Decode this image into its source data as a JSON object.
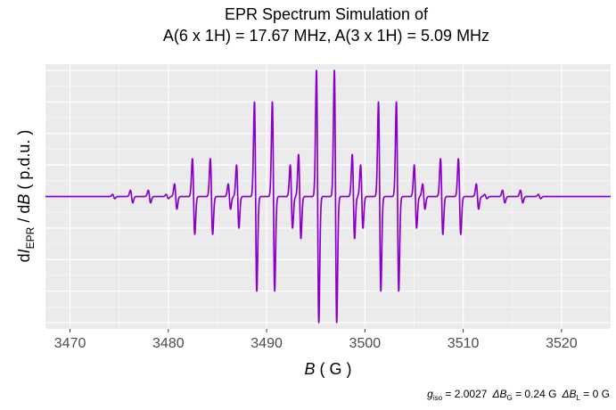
{
  "chart_data": {
    "type": "line",
    "title_line1": "EPR Spectrum Simulation of",
    "title_line2": "A(6 x 1H) = 17.67 MHz, A(3 x 1H) = 5.09 MHz",
    "xlabel_italic": "B",
    "xlabel_unit": " ( G )",
    "ylabel_d": "d",
    "ylabel_I": "I",
    "ylabel_sub": "EPR",
    "ylabel_mid": " / d",
    "ylabel_B": "B",
    "ylabel_unit": "  ( p.d.u. )",
    "xlim": [
      3467.5,
      3525
    ],
    "ylim": [
      -1.05,
      1.05
    ],
    "x_ticks": [
      3470,
      3480,
      3490,
      3500,
      3510,
      3520
    ],
    "x_tick_labels": [
      "3470",
      "3480",
      "3490",
      "3500",
      "3510",
      "3520"
    ],
    "grid": true,
    "series": [
      {
        "color": "#8b00c9",
        "center_field": 3496.1,
        "linewidth_G": 0.24,
        "coupling_6H_G": 6.31,
        "coupling_3H_G": 1.82,
        "x_start": 3467.5,
        "x_end": 3525
      }
    ],
    "caption": {
      "g_label": "g",
      "g_sub": "iso",
      "g_value": " = 2.0027",
      "dBG_label": "ΔB",
      "dBG_sub": "G",
      "dBG_value": " = 0.24  G",
      "dBL_label": "ΔB",
      "dBL_sub": "L",
      "dBL_value": " = 0  G"
    }
  }
}
